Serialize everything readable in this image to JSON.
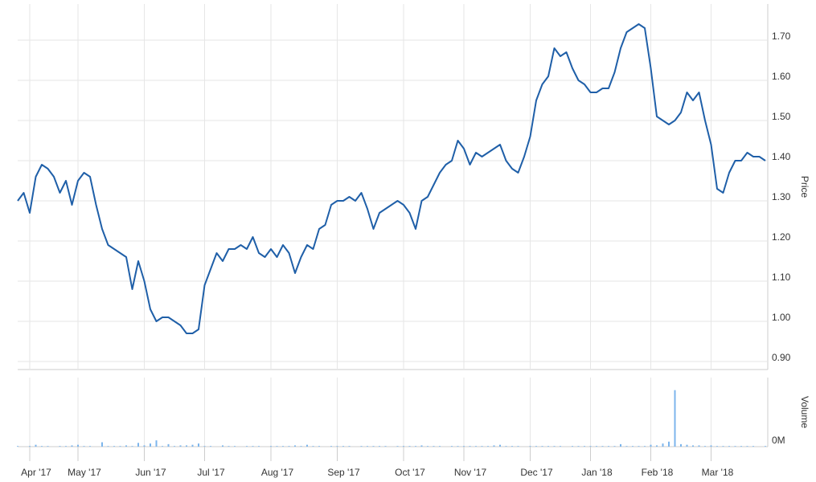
{
  "chart_data": {
    "type": "line",
    "categories": [
      null,
      null,
      "Apr '17",
      null,
      null,
      null,
      null,
      null,
      null,
      null,
      "May '17",
      null,
      null,
      null,
      null,
      null,
      null,
      null,
      null,
      null,
      null,
      "Jun '17",
      null,
      null,
      null,
      null,
      null,
      null,
      null,
      null,
      null,
      "Jul '17",
      null,
      null,
      null,
      null,
      null,
      null,
      null,
      null,
      null,
      null,
      "Aug '17",
      null,
      null,
      null,
      null,
      null,
      null,
      null,
      null,
      null,
      null,
      "Sep '17",
      null,
      null,
      null,
      null,
      null,
      null,
      null,
      null,
      null,
      null,
      "Oct '17",
      null,
      null,
      null,
      null,
      null,
      null,
      null,
      null,
      null,
      "Nov '17",
      null,
      null,
      null,
      null,
      null,
      null,
      null,
      null,
      null,
      null,
      "Dec '17",
      null,
      null,
      null,
      null,
      null,
      null,
      null,
      null,
      null,
      "Jan '18",
      null,
      null,
      null,
      null,
      null,
      null,
      null,
      null,
      null,
      "Feb '18",
      null,
      null,
      null,
      null,
      null,
      null,
      null,
      null,
      null,
      "Mar '18",
      null,
      null,
      null,
      null,
      null,
      null,
      null,
      null,
      null
    ],
    "series": [
      {
        "name": "Price",
        "type": "line",
        "color": "#1f5fa8",
        "values": [
          1.3,
          1.32,
          1.27,
          1.36,
          1.39,
          1.38,
          1.36,
          1.32,
          1.35,
          1.29,
          1.35,
          1.37,
          1.36,
          1.29,
          1.23,
          1.19,
          1.18,
          1.17,
          1.16,
          1.08,
          1.15,
          1.1,
          1.03,
          1.0,
          1.01,
          1.01,
          1.0,
          0.99,
          0.97,
          0.97,
          0.98,
          1.09,
          1.13,
          1.17,
          1.15,
          1.18,
          1.18,
          1.19,
          1.18,
          1.21,
          1.17,
          1.16,
          1.18,
          1.16,
          1.19,
          1.17,
          1.12,
          1.16,
          1.19,
          1.18,
          1.23,
          1.24,
          1.29,
          1.3,
          1.3,
          1.31,
          1.3,
          1.32,
          1.28,
          1.23,
          1.27,
          1.28,
          1.29,
          1.3,
          1.29,
          1.27,
          1.23,
          1.3,
          1.31,
          1.34,
          1.37,
          1.39,
          1.4,
          1.45,
          1.43,
          1.39,
          1.42,
          1.41,
          1.42,
          1.43,
          1.44,
          1.4,
          1.38,
          1.37,
          1.41,
          1.46,
          1.55,
          1.59,
          1.61,
          1.68,
          1.66,
          1.67,
          1.63,
          1.6,
          1.59,
          1.57,
          1.57,
          1.58,
          1.58,
          1.62,
          1.68,
          1.72,
          1.73,
          1.74,
          1.73,
          1.63,
          1.51,
          1.5,
          1.49,
          1.5,
          1.52,
          1.57,
          1.55,
          1.57,
          1.5,
          1.44,
          1.33,
          1.32,
          1.37,
          1.4,
          1.4,
          1.42,
          1.41,
          1.41,
          1.4
        ]
      },
      {
        "name": "Volume",
        "type": "bar",
        "axis": "y2",
        "color": "#7cb5ec",
        "values": [
          0.01,
          0,
          0.01,
          0.03,
          0.01,
          0.01,
          0,
          0.01,
          0.01,
          0.02,
          0.03,
          0.01,
          0.01,
          0,
          0.07,
          0.01,
          0.01,
          0.01,
          0.02,
          0.01,
          0.06,
          0.02,
          0.05,
          0.1,
          0.01,
          0.04,
          0.01,
          0.02,
          0.02,
          0.03,
          0.05,
          0.01,
          0.01,
          0,
          0.02,
          0.01,
          0.01,
          0,
          0.01,
          0.01,
          0.01,
          0,
          0.01,
          0.01,
          0.01,
          0.01,
          0.02,
          0.01,
          0.03,
          0.01,
          0.01,
          0,
          0.01,
          0.01,
          0.01,
          0.01,
          0,
          0.01,
          0.01,
          0.01,
          0.01,
          0.01,
          0,
          0.01,
          0.01,
          0.01,
          0.01,
          0.02,
          0.01,
          0.01,
          0.01,
          0,
          0.01,
          0.01,
          0.01,
          0.01,
          0.01,
          0.01,
          0.01,
          0.02,
          0.03,
          0.01,
          0.01,
          0.01,
          0,
          0.01,
          0.01,
          0.01,
          0.01,
          0.01,
          0.01,
          0,
          0.01,
          0.01,
          0.01,
          0.01,
          0.01,
          0.01,
          0.01,
          0.01,
          0.04,
          0.01,
          0.01,
          0.01,
          0.01,
          0.03,
          0.02,
          0.05,
          0.08,
          0.9,
          0.04,
          0.03,
          0.02,
          0.02,
          0.01,
          0.02,
          0.01,
          0.01,
          0.01,
          0.01,
          0.01,
          0.01,
          0.01,
          0,
          0.01
        ]
      }
    ],
    "ylim": [
      0.88,
      1.79
    ],
    "yticks": [
      {
        "value": 0.9,
        "label": "0.90"
      },
      {
        "value": 1.0,
        "label": "1.00"
      },
      {
        "value": 1.1,
        "label": "1.10"
      },
      {
        "value": 1.2,
        "label": "1.20"
      },
      {
        "value": 1.3,
        "label": "1.30"
      },
      {
        "value": 1.4,
        "label": "1.40"
      },
      {
        "value": 1.5,
        "label": "1.50"
      },
      {
        "value": 1.6,
        "label": "1.60"
      },
      {
        "value": 1.7,
        "label": "1.70"
      }
    ],
    "y2lim": [
      0,
      1.1
    ],
    "y2ticks": [
      {
        "value": 0,
        "label": "0M"
      }
    ],
    "grid": true
  }
}
